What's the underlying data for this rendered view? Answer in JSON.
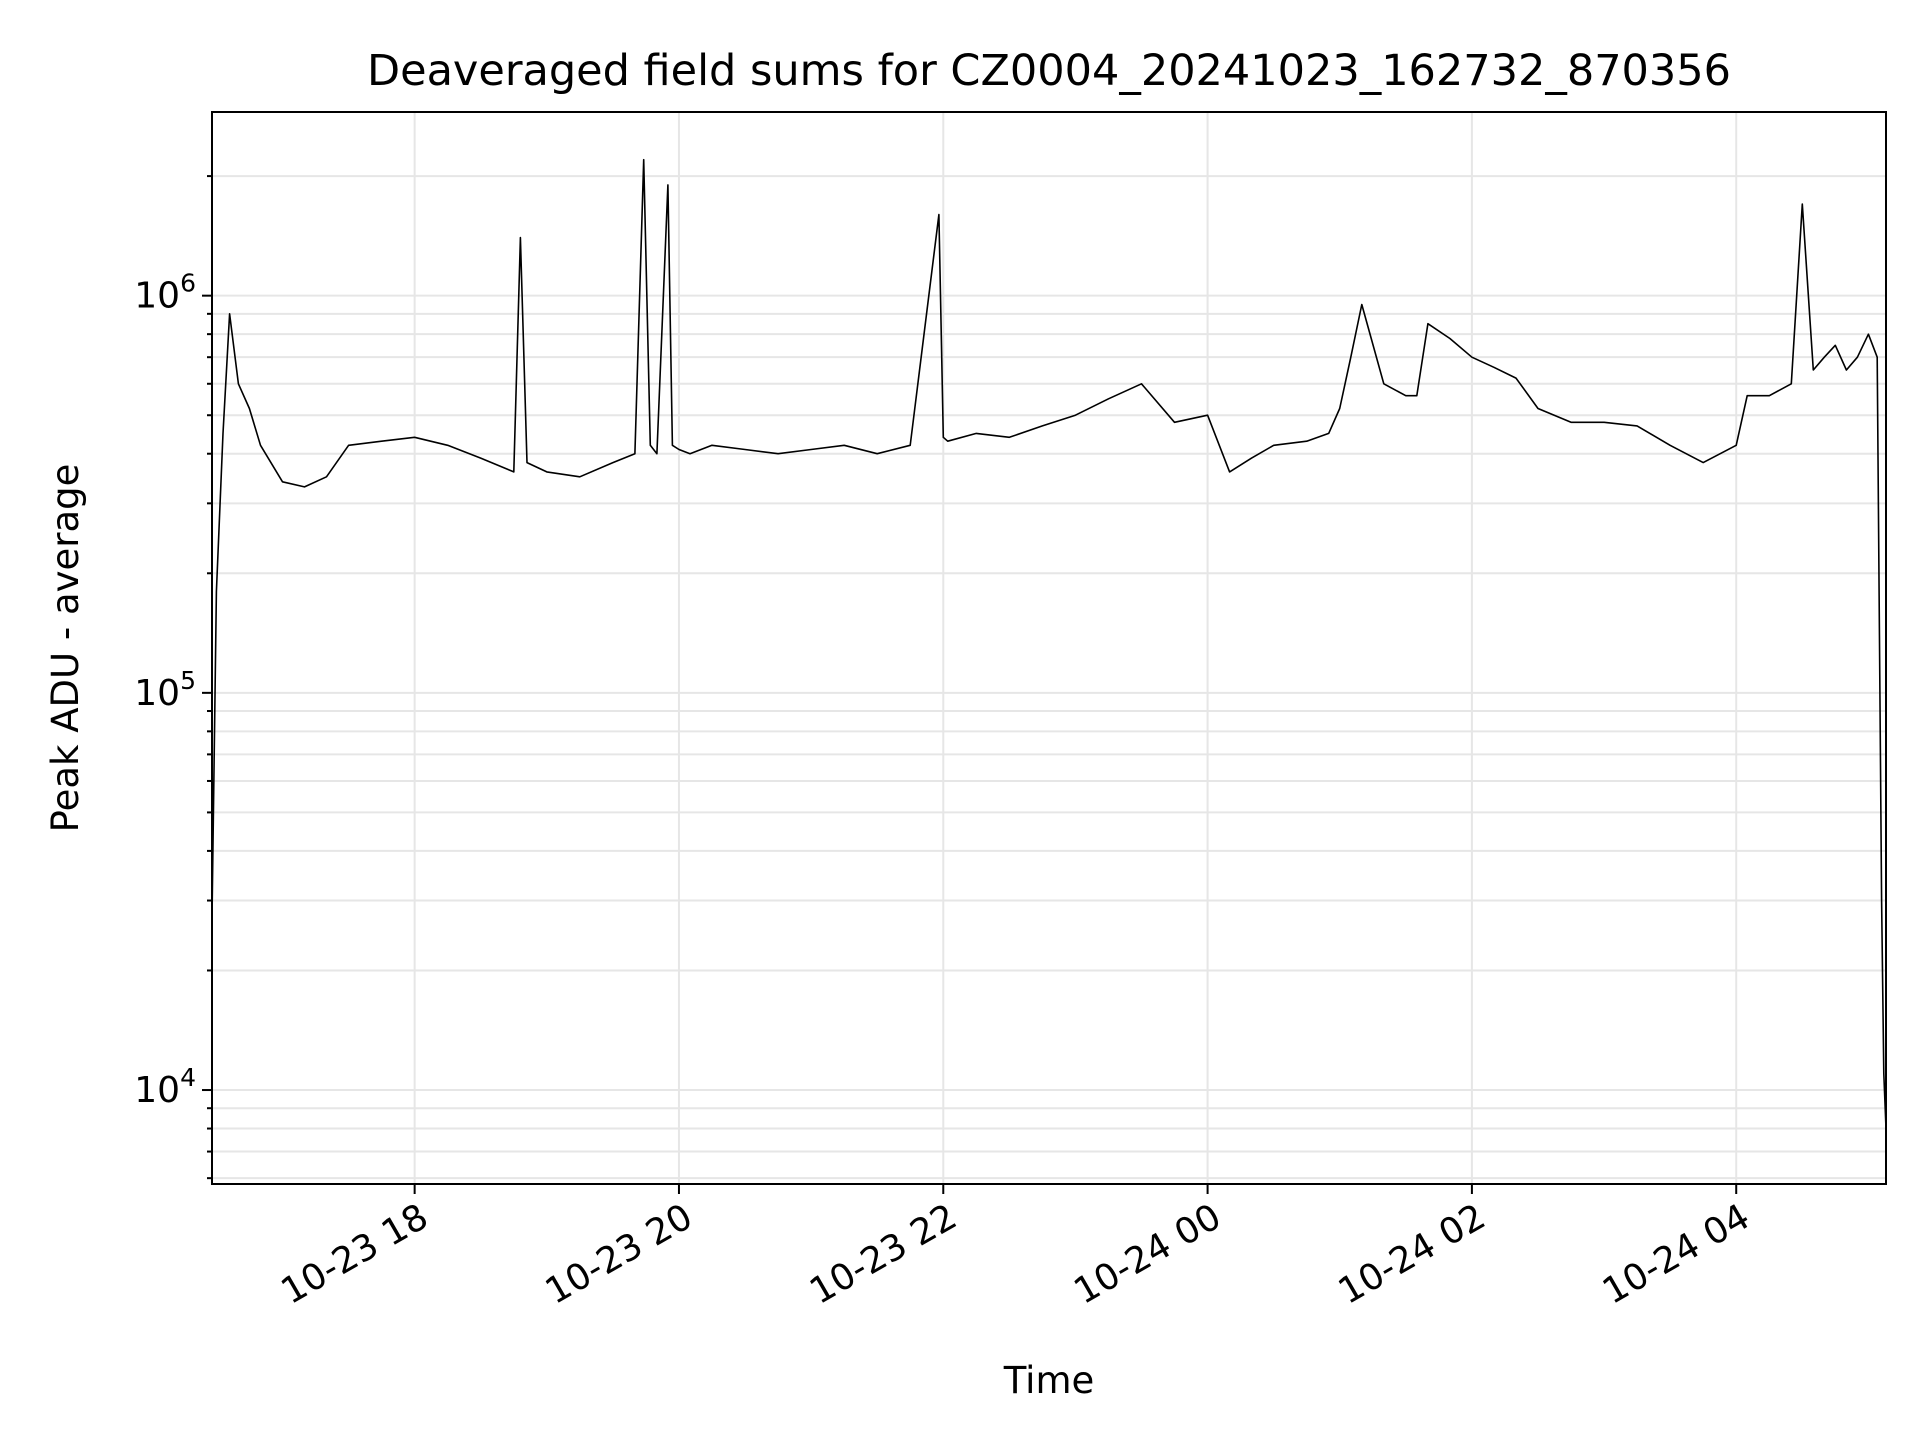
{
  "chart_data": {
    "type": "line",
    "title": "Deaveraged field sums for CZ0004_20241023_162732_870356",
    "xlabel": "Time",
    "ylabel": "Peak ADU - average",
    "x_axis": {
      "scale": "time",
      "range": [
        "2024-10-23 16:28",
        "2024-10-24 05:08"
      ],
      "ticks": [
        {
          "value": "2024-10-23 18:00",
          "label": "10-23 18"
        },
        {
          "value": "2024-10-23 20:00",
          "label": "10-23 20"
        },
        {
          "value": "2024-10-23 22:00",
          "label": "10-23 22"
        },
        {
          "value": "2024-10-24 00:00",
          "label": "10-24 00"
        },
        {
          "value": "2024-10-24 02:00",
          "label": "10-24 02"
        },
        {
          "value": "2024-10-24 04:00",
          "label": "10-24 04"
        }
      ]
    },
    "y_axis": {
      "scale": "log",
      "range": [
        5800,
        2900000
      ],
      "ticks": [
        {
          "value": 10000,
          "base": "10",
          "exp": "4"
        },
        {
          "value": 100000,
          "base": "10",
          "exp": "5"
        },
        {
          "value": 1000000,
          "base": "10",
          "exp": "6"
        }
      ]
    },
    "grid": true,
    "line_color": "#000000",
    "grid_color": "#e6e6e6",
    "series": [
      {
        "x": [
          "2024-10-23 16:28",
          "2024-10-23 16:30",
          "2024-10-23 16:33",
          "2024-10-23 16:36",
          "2024-10-23 16:40",
          "2024-10-23 16:45",
          "2024-10-23 16:50",
          "2024-10-23 17:00",
          "2024-10-23 17:10",
          "2024-10-23 17:20",
          "2024-10-23 17:30",
          "2024-10-23 17:45",
          "2024-10-23 18:00",
          "2024-10-23 18:15",
          "2024-10-23 18:30",
          "2024-10-23 18:45",
          "2024-10-23 18:48",
          "2024-10-23 18:51",
          "2024-10-23 19:00",
          "2024-10-23 19:15",
          "2024-10-23 19:30",
          "2024-10-23 19:40",
          "2024-10-23 19:44",
          "2024-10-23 19:47",
          "2024-10-23 19:50",
          "2024-10-23 19:55",
          "2024-10-23 19:57",
          "2024-10-23 20:00",
          "2024-10-23 20:05",
          "2024-10-23 20:15",
          "2024-10-23 20:30",
          "2024-10-23 20:45",
          "2024-10-23 21:00",
          "2024-10-23 21:15",
          "2024-10-23 21:30",
          "2024-10-23 21:45",
          "2024-10-23 21:58",
          "2024-10-23 22:00",
          "2024-10-23 22:02",
          "2024-10-23 22:15",
          "2024-10-23 22:30",
          "2024-10-23 22:45",
          "2024-10-23 23:00",
          "2024-10-23 23:15",
          "2024-10-23 23:30",
          "2024-10-23 23:45",
          "2024-10-24 00:00",
          "2024-10-24 00:10",
          "2024-10-24 00:20",
          "2024-10-24 00:30",
          "2024-10-24 00:45",
          "2024-10-24 00:55",
          "2024-10-24 01:00",
          "2024-10-24 01:05",
          "2024-10-24 01:10",
          "2024-10-24 01:20",
          "2024-10-24 01:30",
          "2024-10-24 01:35",
          "2024-10-24 01:40",
          "2024-10-24 01:50",
          "2024-10-24 02:00",
          "2024-10-24 02:10",
          "2024-10-24 02:20",
          "2024-10-24 02:30",
          "2024-10-24 02:45",
          "2024-10-24 03:00",
          "2024-10-24 03:15",
          "2024-10-24 03:30",
          "2024-10-24 03:45",
          "2024-10-24 04:00",
          "2024-10-24 04:05",
          "2024-10-24 04:15",
          "2024-10-24 04:25",
          "2024-10-24 04:30",
          "2024-10-24 04:35",
          "2024-10-24 04:40",
          "2024-10-24 04:45",
          "2024-10-24 04:50",
          "2024-10-24 04:55",
          "2024-10-24 05:00",
          "2024-10-24 05:04",
          "2024-10-24 05:06",
          "2024-10-24 05:07",
          "2024-10-24 05:08"
        ],
        "values": [
          27000,
          180000,
          450000,
          900000,
          600000,
          520000,
          420000,
          340000,
          330000,
          350000,
          420000,
          430000,
          440000,
          420000,
          390000,
          360000,
          1400000,
          380000,
          360000,
          350000,
          380000,
          400000,
          2200000,
          420000,
          400000,
          1900000,
          420000,
          410000,
          400000,
          420000,
          410000,
          400000,
          410000,
          420000,
          400000,
          420000,
          1600000,
          440000,
          430000,
          450000,
          440000,
          470000,
          500000,
          550000,
          600000,
          480000,
          500000,
          360000,
          390000,
          420000,
          430000,
          450000,
          520000,
          700000,
          950000,
          600000,
          560000,
          560000,
          850000,
          780000,
          700000,
          660000,
          620000,
          520000,
          480000,
          480000,
          470000,
          420000,
          380000,
          420000,
          560000,
          560000,
          600000,
          1700000,
          650000,
          700000,
          750000,
          650000,
          700000,
          800000,
          700000,
          30000,
          11000,
          8000
        ]
      }
    ]
  }
}
